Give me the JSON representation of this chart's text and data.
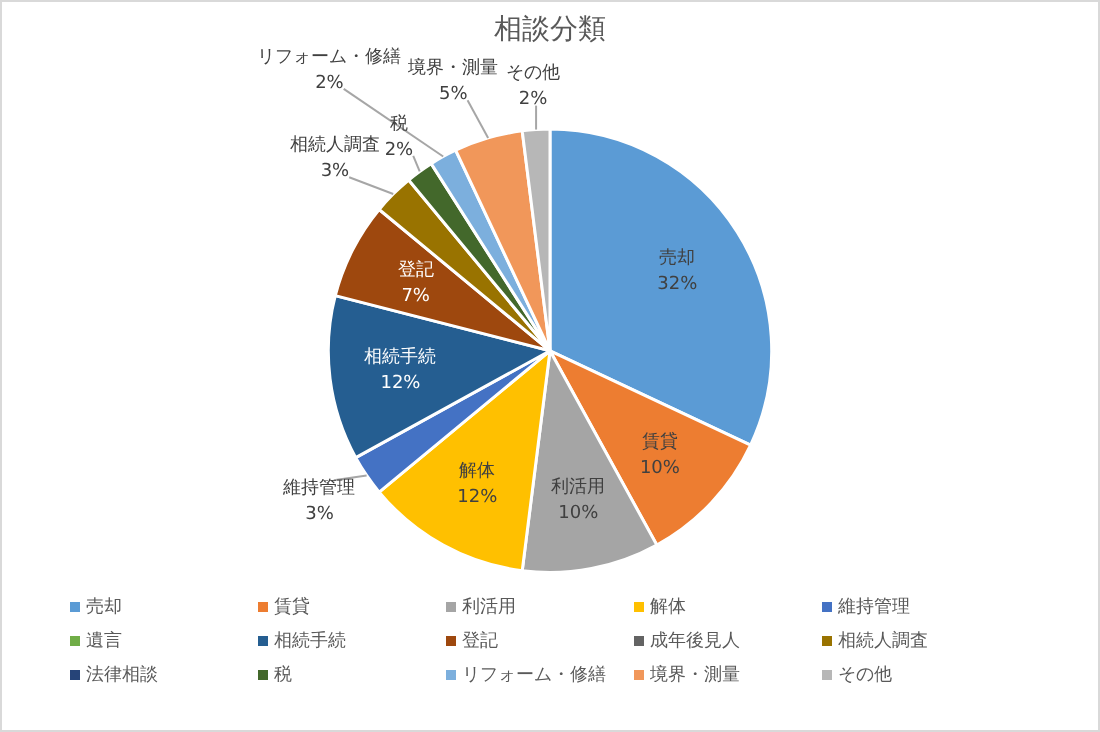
{
  "chart_data": {
    "type": "pie",
    "title": "相談分類",
    "categories": [
      "売却",
      "賃貸",
      "利活用",
      "解体",
      "維持管理",
      "遺言",
      "相続手続",
      "登記",
      "成年後見人",
      "相続人調査",
      "法律相談",
      "税",
      "リフォーム・修繕",
      "境界・測量",
      "その他"
    ],
    "values": [
      32,
      10,
      10,
      12,
      3,
      0,
      12,
      7,
      0,
      3,
      0,
      2,
      2,
      5,
      2
    ],
    "value_labels": [
      "32%",
      "10%",
      "10%",
      "12%",
      "3%",
      null,
      "12%",
      "7%",
      null,
      "3%",
      null,
      "2%",
      "2%",
      "5%",
      "2%"
    ],
    "colors": [
      "#5b9bd5",
      "#ed7d31",
      "#a5a5a5",
      "#ffc000",
      "#4472c4",
      "#70ad47",
      "#255e91",
      "#9e480e",
      "#636363",
      "#997300",
      "#264478",
      "#43682b",
      "#7cafdd",
      "#f1975a",
      "#b7b7b7"
    ],
    "legend": "bottom"
  }
}
